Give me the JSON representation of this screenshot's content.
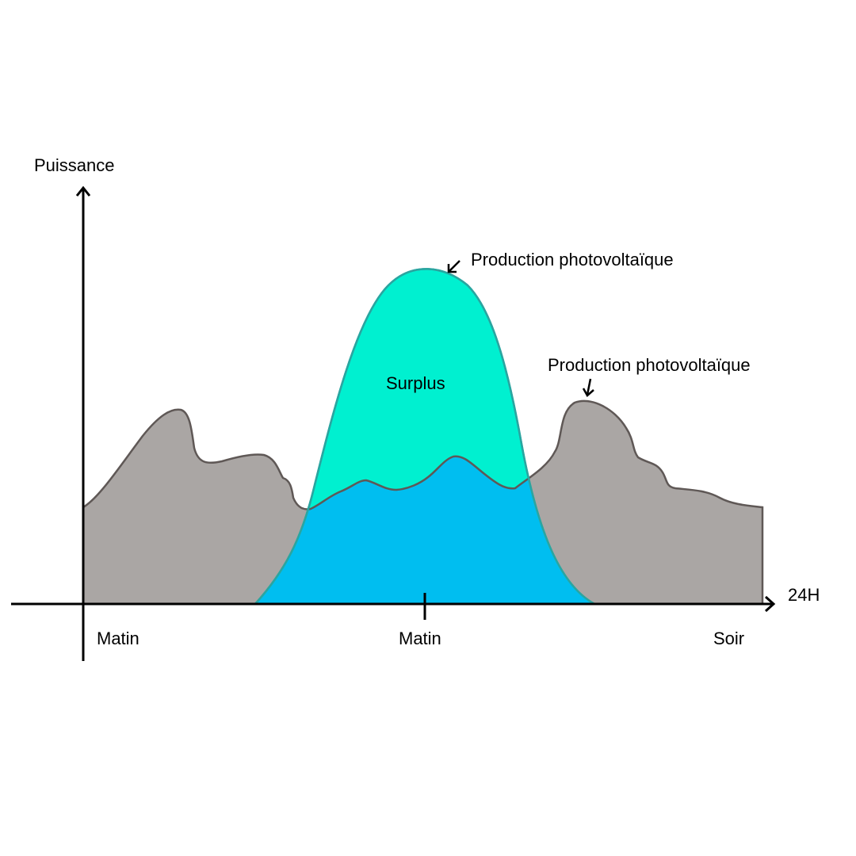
{
  "diagram": {
    "y_axis_label": "Puissance",
    "x_axis_label": "24H",
    "x_labels": {
      "start": "Matin",
      "middle": "Matin",
      "end": "Soir"
    },
    "annotations": {
      "production_top": "Production photovoltaïque",
      "production_right": "Production photovoltaïque",
      "surplus": "Surplus"
    },
    "colors": {
      "consumption_fill": "#aaa6a4",
      "consumption_stroke": "#5f5856",
      "pv_surplus_fill": "#00f0d0",
      "pv_self_consumed_fill": "#00bef0",
      "pv_stroke": "#2aa5a0",
      "axis": "#000000"
    }
  }
}
